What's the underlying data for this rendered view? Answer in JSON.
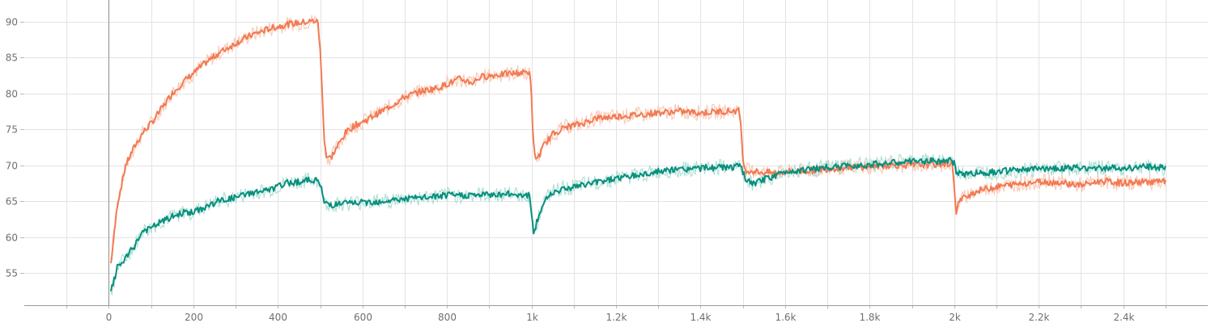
{
  "chart_data": {
    "type": "line",
    "title": "",
    "xlabel": "",
    "ylabel": "",
    "xlim": [
      -200,
      2600
    ],
    "ylim": [
      50.5,
      93
    ],
    "x_ticks": [
      0,
      200,
      400,
      600,
      800,
      1000,
      1200,
      1400,
      1600,
      1800,
      2000,
      2200,
      2400
    ],
    "x_tick_labels": [
      "0",
      "200",
      "400",
      "600",
      "800",
      "1k",
      "1.2k",
      "1.4k",
      "1.6k",
      "1.8k",
      "2k",
      "2.2k",
      "2.4k"
    ],
    "y_ticks": [
      55,
      60,
      65,
      70,
      75,
      80,
      85,
      90
    ],
    "y_tick_labels": [
      "55",
      "60",
      "65",
      "70",
      "75",
      "80",
      "85",
      "90"
    ],
    "grid": true,
    "legend": "none",
    "series": [
      {
        "color": "#f27a52",
        "raw_color": "#f9c5b1",
        "points": [
          [
            5,
            56.3
          ],
          [
            20,
            64.5
          ],
          [
            40,
            70.0
          ],
          [
            60,
            72.5
          ],
          [
            80,
            74.5
          ],
          [
            100,
            75.8
          ],
          [
            120,
            77.5
          ],
          [
            150,
            80.0
          ],
          [
            180,
            81.8
          ],
          [
            200,
            82.8
          ],
          [
            230,
            84.3
          ],
          [
            260,
            85.6
          ],
          [
            300,
            87.0
          ],
          [
            340,
            88.2
          ],
          [
            380,
            89.0
          ],
          [
            420,
            89.6
          ],
          [
            460,
            89.9
          ],
          [
            490,
            90.1
          ],
          [
            495,
            89.8
          ],
          [
            500,
            86.0
          ],
          [
            505,
            80.0
          ],
          [
            510,
            73.5
          ],
          [
            515,
            71.2
          ],
          [
            525,
            71.0
          ],
          [
            540,
            72.5
          ],
          [
            560,
            74.5
          ],
          [
            580,
            75.5
          ],
          [
            600,
            76.0
          ],
          [
            630,
            77.0
          ],
          [
            660,
            78.0
          ],
          [
            700,
            79.5
          ],
          [
            740,
            80.3
          ],
          [
            780,
            80.8
          ],
          [
            800,
            81.3
          ],
          [
            830,
            82.0
          ],
          [
            860,
            81.5
          ],
          [
            880,
            82.3
          ],
          [
            920,
            82.6
          ],
          [
            960,
            82.8
          ],
          [
            995,
            83.0
          ],
          [
            1000,
            80.0
          ],
          [
            1003,
            74.0
          ],
          [
            1008,
            71.2
          ],
          [
            1015,
            71.0
          ],
          [
            1030,
            72.8
          ],
          [
            1050,
            74.3
          ],
          [
            1080,
            75.3
          ],
          [
            1120,
            75.8
          ],
          [
            1150,
            76.5
          ],
          [
            1200,
            76.8
          ],
          [
            1250,
            77.0
          ],
          [
            1300,
            77.3
          ],
          [
            1350,
            77.5
          ],
          [
            1400,
            77.3
          ],
          [
            1450,
            77.5
          ],
          [
            1490,
            77.6
          ],
          [
            1495,
            76.0
          ],
          [
            1500,
            71.5
          ],
          [
            1503,
            69.3
          ],
          [
            1520,
            69.2
          ],
          [
            1550,
            69.0
          ],
          [
            1580,
            68.9
          ],
          [
            1600,
            69.1
          ],
          [
            1650,
            69.2
          ],
          [
            1700,
            69.5
          ],
          [
            1750,
            69.7
          ],
          [
            1800,
            69.8
          ],
          [
            1850,
            70.0
          ],
          [
            1900,
            70.0
          ],
          [
            1950,
            70.1
          ],
          [
            1995,
            70.2
          ],
          [
            2000,
            67.5
          ],
          [
            2005,
            63.0
          ],
          [
            2010,
            64.8
          ],
          [
            2030,
            65.8
          ],
          [
            2060,
            66.5
          ],
          [
            2100,
            67.0
          ],
          [
            2150,
            67.4
          ],
          [
            2200,
            67.7
          ],
          [
            2250,
            67.6
          ],
          [
            2300,
            67.2
          ],
          [
            2350,
            67.8
          ],
          [
            2400,
            67.5
          ],
          [
            2450,
            67.7
          ],
          [
            2500,
            67.7
          ]
        ]
      },
      {
        "color": "#07907e",
        "raw_color": "#a8ddd2",
        "points": [
          [
            5,
            52.3
          ],
          [
            10,
            53.5
          ],
          [
            20,
            55.7
          ],
          [
            40,
            57.0
          ],
          [
            60,
            58.7
          ],
          [
            80,
            60.8
          ],
          [
            100,
            61.2
          ],
          [
            120,
            62.0
          ],
          [
            150,
            62.8
          ],
          [
            180,
            63.5
          ],
          [
            200,
            63.4
          ],
          [
            230,
            64.2
          ],
          [
            260,
            65.0
          ],
          [
            300,
            65.5
          ],
          [
            340,
            66.2
          ],
          [
            380,
            66.5
          ],
          [
            420,
            67.5
          ],
          [
            460,
            67.8
          ],
          [
            490,
            68.0
          ],
          [
            500,
            67.3
          ],
          [
            505,
            66.0
          ],
          [
            510,
            64.8
          ],
          [
            530,
            64.5
          ],
          [
            560,
            64.7
          ],
          [
            600,
            64.8
          ],
          [
            650,
            65.0
          ],
          [
            700,
            65.3
          ],
          [
            750,
            65.5
          ],
          [
            800,
            65.8
          ],
          [
            850,
            65.8
          ],
          [
            900,
            65.9
          ],
          [
            950,
            66.0
          ],
          [
            995,
            65.8
          ],
          [
            1000,
            63.0
          ],
          [
            1005,
            60.5
          ],
          [
            1015,
            62.5
          ],
          [
            1030,
            65.0
          ],
          [
            1050,
            66.3
          ],
          [
            1080,
            66.8
          ],
          [
            1120,
            67.2
          ],
          [
            1150,
            67.6
          ],
          [
            1200,
            68.2
          ],
          [
            1250,
            68.6
          ],
          [
            1300,
            69.1
          ],
          [
            1350,
            69.4
          ],
          [
            1400,
            69.6
          ],
          [
            1450,
            69.7
          ],
          [
            1495,
            69.8
          ],
          [
            1500,
            69.0
          ],
          [
            1510,
            67.8
          ],
          [
            1525,
            67.4
          ],
          [
            1550,
            68.0
          ],
          [
            1580,
            68.6
          ],
          [
            1600,
            69.1
          ],
          [
            1650,
            69.4
          ],
          [
            1700,
            69.7
          ],
          [
            1750,
            69.9
          ],
          [
            1800,
            70.1
          ],
          [
            1850,
            70.3
          ],
          [
            1900,
            70.5
          ],
          [
            1950,
            70.6
          ],
          [
            1995,
            70.6
          ],
          [
            2000,
            70.2
          ],
          [
            2005,
            69.0
          ],
          [
            2020,
            68.8
          ],
          [
            2050,
            68.9
          ],
          [
            2100,
            69.1
          ],
          [
            2150,
            69.3
          ],
          [
            2200,
            69.5
          ],
          [
            2250,
            69.6
          ],
          [
            2300,
            69.6
          ],
          [
            2350,
            69.6
          ],
          [
            2400,
            69.6
          ],
          [
            2450,
            69.8
          ],
          [
            2500,
            69.6
          ]
        ]
      }
    ]
  }
}
